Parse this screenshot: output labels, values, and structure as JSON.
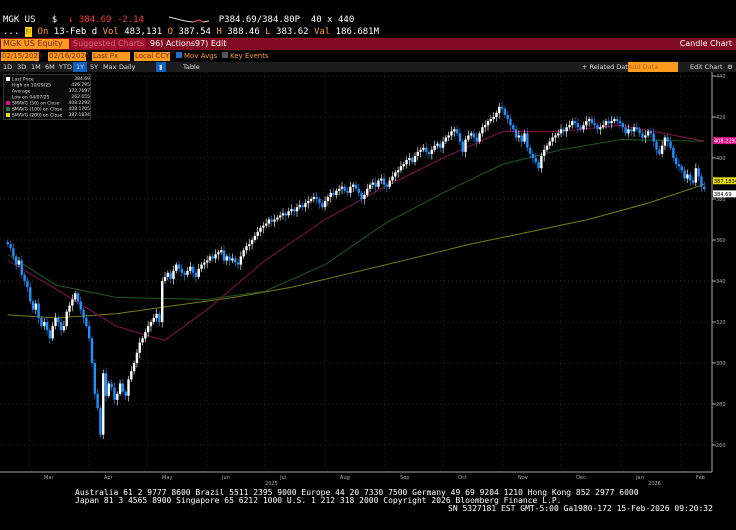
{
  "quote": {
    "ticker": "MGK US",
    "currency": "$",
    "arrow": "↓",
    "last": "384.69",
    "change": "-2.14",
    "bid_ask": "P384.69/384.80P",
    "size": "40 x 440"
  },
  "quote2": {
    "prefix": "On",
    "date": "13-Feb d",
    "vol_label": "Vol",
    "vol": "483,131",
    "o_label": "O",
    "open": "387.54",
    "h_label": "H",
    "high": "388.46",
    "l_label": "L",
    "low": "383.62",
    "val_label": "Val",
    "val": "186.681M"
  },
  "titlebar": {
    "security": "MGK US Equity",
    "suggested": "Suggested Charts",
    "actions": "96) Actions",
    "edit": "97) Edit",
    "title": "Candle Chart"
  },
  "toolbar": {
    "start": "02/15/2025",
    "end": "02/16/2026",
    "field": "Last Px",
    "currency": "Local CCY",
    "mov_avgs": "Mov Avgs",
    "key_events": "Key Events",
    "related": "+ Related Data",
    "add_data": "Add Data",
    "edit_chart": "Edit Chart"
  },
  "ranges": {
    "items": [
      "1D",
      "3D",
      "1M",
      "6M",
      "YTD",
      "1Y",
      "5Y",
      "Max",
      "Daily"
    ],
    "selected": "1Y",
    "table": "Table"
  },
  "legend": [
    {
      "label": "Last Price",
      "value": "384.69",
      "color": "#ffffff"
    },
    {
      "label": "High on 10/29/25",
      "value": "426.795",
      "color": ""
    },
    {
      "label": "Average",
      "value": "372.7697",
      "color": ""
    },
    {
      "label": "Low on 04/07/25",
      "value": "262.655",
      "color": ""
    },
    {
      "label": "SMAVG (50)  on Close",
      "value": "408.2292",
      "color": "#e0108a"
    },
    {
      "label": "SMAVG (100)  on Close",
      "value": "408.1705",
      "color": "#1a7a4a"
    },
    {
      "label": "SMAVG (200)  on Close",
      "value": "387.1834",
      "color": "#e8e000"
    }
  ],
  "colors": {
    "up": "#ffffff",
    "down": "#1e90ff",
    "sma50": "#8a1050",
    "sma100": "#1e5a1e",
    "sma200": "#7a7a10"
  },
  "chart_data": {
    "type": "candlestick",
    "start": "2025-02-18",
    "end": "2026-02-13",
    "ylim": [
      250,
      445
    ],
    "yticks": [
      260,
      280,
      300,
      320,
      340,
      360,
      380,
      400,
      420,
      440
    ],
    "xticks": [
      {
        "label": "Mar",
        "date": "2025-03-01"
      },
      {
        "label": "Apr",
        "date": "2025-04-01"
      },
      {
        "label": "May",
        "date": "2025-05-01"
      },
      {
        "label": "Jun",
        "date": "2025-06-01"
      },
      {
        "label": "Jul",
        "date": "2025-07-01"
      },
      {
        "label": "Aug",
        "date": "2025-08-01"
      },
      {
        "label": "Sep",
        "date": "2025-09-01"
      },
      {
        "label": "Oct",
        "date": "2025-10-01"
      },
      {
        "label": "Nov",
        "date": "2025-11-01"
      },
      {
        "label": "Dec",
        "date": "2025-12-01"
      },
      {
        "label": "Jan",
        "date": "2026-01-01"
      },
      {
        "label": "Feb",
        "date": "2026-02-01"
      }
    ],
    "years": [
      {
        "label": "2025",
        "date": "2025-07-01"
      },
      {
        "label": "2026",
        "date": "2026-01-15"
      }
    ],
    "closes": [
      358,
      356,
      352,
      348,
      350,
      343,
      340,
      337,
      330,
      326,
      329,
      322,
      318,
      320,
      316,
      312,
      318,
      322,
      320,
      316,
      318,
      325,
      328,
      331,
      334,
      330,
      326,
      322,
      318,
      312,
      300,
      285,
      278,
      265,
      295,
      284,
      290,
      288,
      282,
      285,
      290,
      286,
      284,
      292,
      296,
      300,
      305,
      310,
      312,
      315,
      318,
      320,
      322,
      324,
      320,
      340,
      342,
      344,
      341,
      345,
      348,
      346,
      344,
      343,
      345,
      347,
      344,
      342,
      346,
      348,
      349,
      350,
      352,
      351,
      353,
      354,
      355,
      350,
      352,
      350,
      351,
      349,
      348,
      352,
      355,
      357,
      358,
      360,
      362,
      364,
      366,
      367,
      368,
      370,
      369,
      370,
      371,
      372,
      373,
      372,
      374,
      375,
      374,
      376,
      377,
      376,
      378,
      379,
      380,
      381,
      380,
      378,
      376,
      379,
      381,
      383,
      382,
      384,
      385,
      386,
      384,
      383,
      386,
      387,
      385,
      383,
      380,
      382,
      385,
      387,
      388,
      386,
      389,
      390,
      387,
      386,
      389,
      391,
      393,
      394,
      396,
      397,
      399,
      400,
      398,
      401,
      403,
      404,
      405,
      403,
      402,
      404,
      406,
      407,
      405,
      408,
      410,
      411,
      413,
      414,
      412,
      408,
      403,
      409,
      411,
      412,
      410,
      408,
      412,
      415,
      416,
      418,
      419,
      420,
      422,
      425,
      424,
      421,
      419,
      416,
      414,
      410,
      411,
      408,
      412,
      405,
      402,
      400,
      398,
      395,
      401,
      404,
      406,
      408,
      410,
      411,
      412,
      414,
      413,
      415,
      416,
      418,
      417,
      415,
      414,
      416,
      418,
      419,
      417,
      416,
      414,
      415,
      416,
      418,
      417,
      418,
      419,
      418,
      417,
      415,
      412,
      414,
      413,
      415,
      414,
      412,
      410,
      411,
      413,
      412,
      408,
      404,
      402,
      406,
      410,
      408,
      405,
      400,
      397,
      396,
      394,
      390,
      392,
      389,
      388,
      395,
      391,
      386,
      384.69
    ],
    "sma50": [
      [
        "2025-02-18",
        350
      ],
      [
        "2025-03-15",
        336
      ],
      [
        "2025-04-15",
        318
      ],
      [
        "2025-05-10",
        311
      ],
      [
        "2025-06-01",
        326
      ],
      [
        "2025-07-01",
        350
      ],
      [
        "2025-08-01",
        370
      ],
      [
        "2025-09-01",
        386
      ],
      [
        "2025-10-01",
        400
      ],
      [
        "2025-11-01",
        413
      ],
      [
        "2025-12-01",
        413
      ],
      [
        "2026-01-01",
        416
      ],
      [
        "2026-02-13",
        408.23
      ]
    ],
    "sma100": [
      [
        "2025-02-18",
        353
      ],
      [
        "2025-03-15",
        338
      ],
      [
        "2025-04-15",
        332
      ],
      [
        "2025-06-01",
        331
      ],
      [
        "2025-07-01",
        335
      ],
      [
        "2025-08-01",
        348
      ],
      [
        "2025-09-01",
        368
      ],
      [
        "2025-10-01",
        383
      ],
      [
        "2025-11-01",
        397
      ],
      [
        "2025-12-01",
        404
      ],
      [
        "2026-01-01",
        409
      ],
      [
        "2026-02-13",
        408.17
      ]
    ],
    "sma200": [
      [
        "2025-02-18",
        323.5
      ],
      [
        "2025-03-15",
        322
      ],
      [
        "2025-04-15",
        324
      ],
      [
        "2025-05-15",
        328
      ],
      [
        "2025-06-15",
        332
      ],
      [
        "2025-07-15",
        337
      ],
      [
        "2025-08-15",
        344
      ],
      [
        "2025-09-15",
        351
      ],
      [
        "2025-10-15",
        358
      ],
      [
        "2025-11-15",
        364
      ],
      [
        "2025-12-15",
        370
      ],
      [
        "2026-01-15",
        378
      ],
      [
        "2026-02-13",
        387.18
      ]
    ]
  },
  "footer": {
    "line1": "Australia 61 2 9777 8600 Brazil 5511 2395 9000 Europe 44 20 7330 7500 Germany 49 69 9204 1210 Hong Kong 852 2977 6000",
    "line2": "Japan 81 3 4565 8900        Singapore 65 6212 1000        U.S. 1 212 318 2000           Copyright 2026 Bloomberg Finance L.P.",
    "line3": "SN 5327181 EST  GMT-5:00 Ga1980-172 15-Feb-2026 09:20:32"
  }
}
